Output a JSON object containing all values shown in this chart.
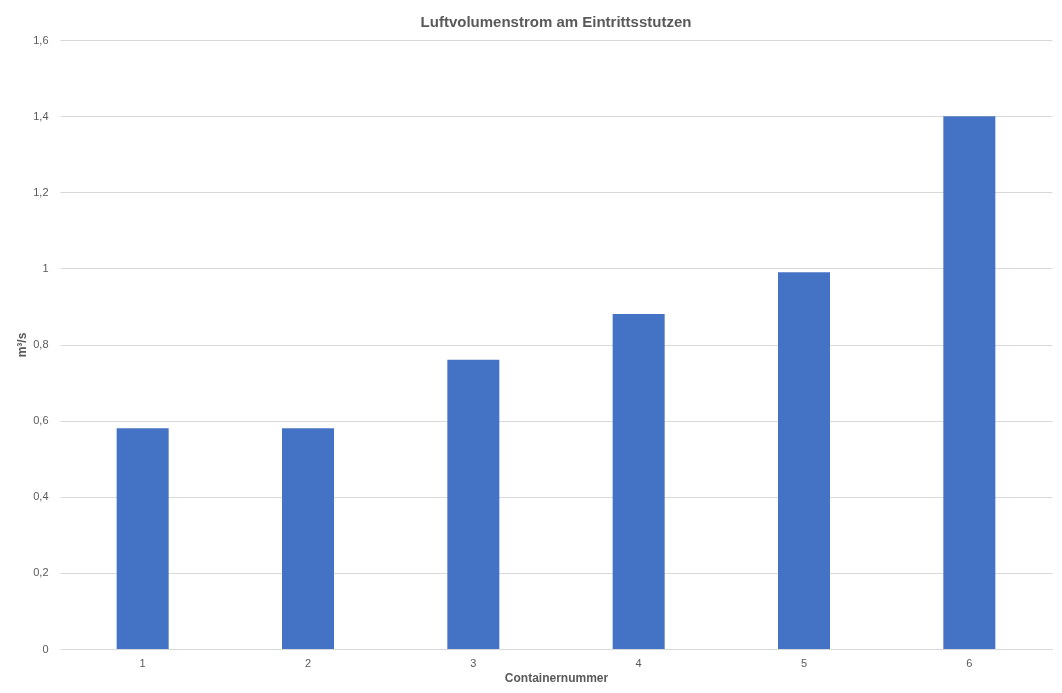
{
  "chart_data": {
    "type": "bar",
    "title": "Luftvolumenstrom am Eintrittsstutzen",
    "xlabel": "Containernummer",
    "ylabel": "m³/s",
    "categories": [
      "1",
      "2",
      "3",
      "4",
      "5",
      "6"
    ],
    "values": [
      0.58,
      0.58,
      0.76,
      0.88,
      0.99,
      1.4
    ],
    "color": "#4472c4",
    "ylim": [
      0,
      1.6
    ],
    "yticks": [
      0,
      {
        "value": 0.2,
        "label": "0,2"
      },
      {
        "value": 0.4,
        "label": "0,4"
      },
      {
        "value": 0.6,
        "label": "0,6"
      },
      {
        "value": 0.8,
        "label": "0,8"
      },
      1,
      {
        "value": 1.2,
        "label": "1,2"
      },
      {
        "value": 1.4,
        "label": "1,4"
      },
      {
        "value": 1.6,
        "label": "1,6"
      }
    ],
    "grid": "y"
  }
}
